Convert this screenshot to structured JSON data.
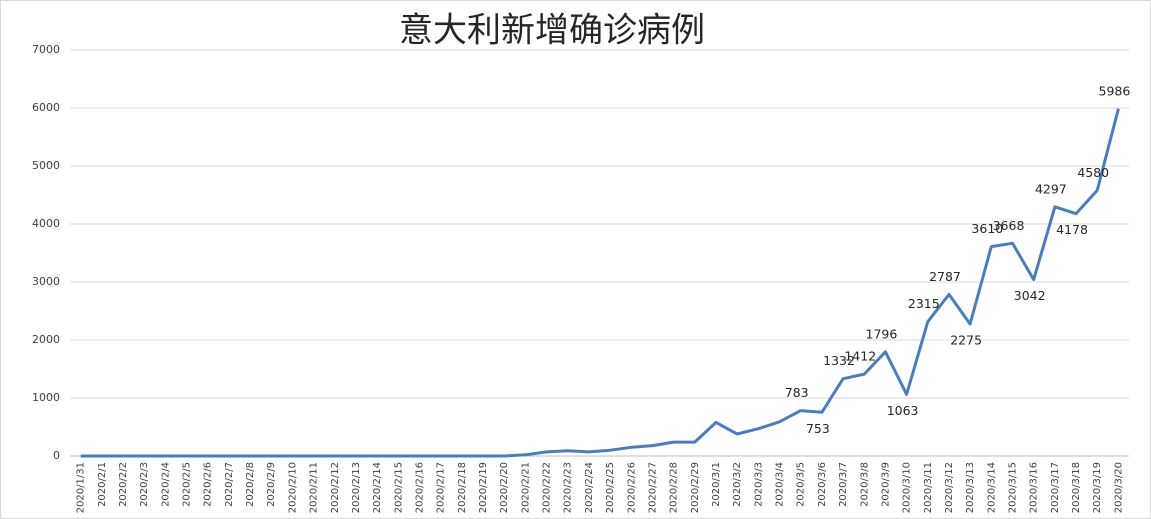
{
  "chart_data": {
    "type": "line",
    "title": "意大利新增确诊病例",
    "categories": [
      "2020/1/31",
      "2020/2/1",
      "2020/2/2",
      "2020/2/3",
      "2020/2/4",
      "2020/2/5",
      "2020/2/6",
      "2020/2/7",
      "2020/2/8",
      "2020/2/9",
      "2020/2/10",
      "2020/2/11",
      "2020/2/12",
      "2020/2/13",
      "2020/2/14",
      "2020/2/15",
      "2020/2/16",
      "2020/2/17",
      "2020/2/18",
      "2020/2/19",
      "2020/2/20",
      "2020/2/21",
      "2020/2/22",
      "2020/2/23",
      "2020/2/24",
      "2020/2/25",
      "2020/2/26",
      "2020/2/27",
      "2020/2/28",
      "2020/2/29",
      "2020/3/1",
      "2020/3/2",
      "2020/3/3",
      "2020/3/4",
      "2020/3/5",
      "2020/3/6",
      "2020/3/7",
      "2020/3/8",
      "2020/3/9",
      "2020/3/10",
      "2020/3/11",
      "2020/3/12",
      "2020/3/13",
      "2020/3/14",
      "2020/3/15",
      "2020/3/16",
      "2020/3/17",
      "2020/3/18",
      "2020/3/19",
      "2020/3/20"
    ],
    "values": [
      0,
      0,
      0,
      0,
      0,
      0,
      0,
      0,
      0,
      0,
      0,
      0,
      0,
      0,
      0,
      0,
      0,
      0,
      0,
      0,
      0,
      20,
      70,
      90,
      70,
      100,
      150,
      180,
      240,
      240,
      580,
      380,
      470,
      590,
      783,
      753,
      1332,
      1412,
      1796,
      1063,
      2315,
      2787,
      2275,
      3610,
      3668,
      3042,
      4297,
      4178,
      4580,
      5986
    ],
    "value_labels": [
      null,
      null,
      null,
      null,
      null,
      null,
      null,
      null,
      null,
      null,
      null,
      null,
      null,
      null,
      null,
      null,
      null,
      null,
      null,
      null,
      null,
      null,
      null,
      null,
      null,
      null,
      null,
      null,
      null,
      null,
      null,
      null,
      null,
      null,
      "783",
      "753",
      "1332",
      "1412",
      "1796",
      "1063",
      "2315",
      "2787",
      "2275",
      "3610",
      "3668",
      "3042",
      "4297",
      "4178",
      "4580",
      "5986"
    ],
    "color": "#4a7ebb",
    "ylim": [
      0,
      7000
    ],
    "yticks": [
      0,
      1000,
      2000,
      3000,
      4000,
      5000,
      6000,
      7000
    ],
    "grid": true
  }
}
